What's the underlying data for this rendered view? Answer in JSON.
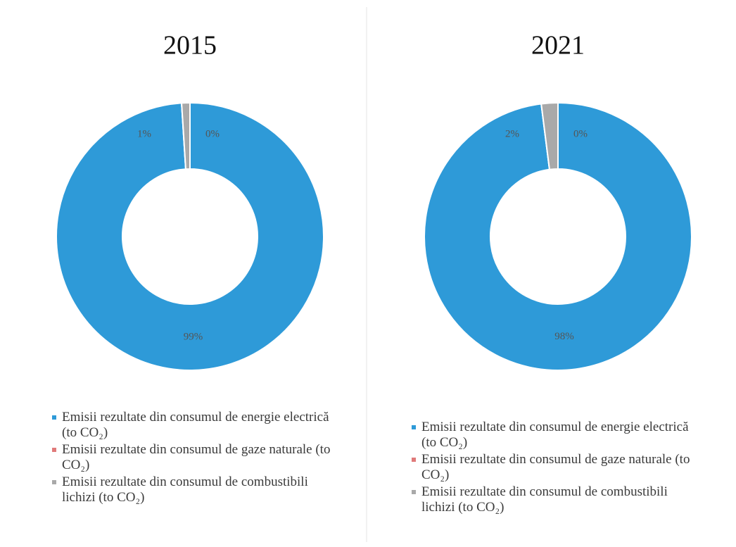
{
  "chart_data": [
    {
      "type": "donut",
      "title": "2015",
      "categories": [
        "Emisii rezultate din consumul de energie electrică (to CO₂)",
        "Emisii rezultate din consumul de gaze naturale (to CO₂)",
        "Emisii rezultate din consumul de combustibili lichizi (to CO₂)"
      ],
      "values": [
        99,
        0,
        1
      ],
      "value_labels": [
        "99%",
        "0%",
        "1%"
      ],
      "colors": [
        "#2e9ad8",
        "#e07a7a",
        "#a9a9a9"
      ]
    },
    {
      "type": "donut",
      "title": "2021",
      "categories": [
        "Emisii rezultate din consumul de energie electrică (to CO₂)",
        "Emisii rezultate din consumul de gaze naturale (to CO₂)",
        "Emisii rezultate din consumul de combustibili lichizi (to CO₂)"
      ],
      "values": [
        98,
        0,
        2
      ],
      "value_labels": [
        "98%",
        "0%",
        "2%"
      ],
      "colors": [
        "#2e9ad8",
        "#e07a7a",
        "#a9a9a9"
      ]
    }
  ]
}
